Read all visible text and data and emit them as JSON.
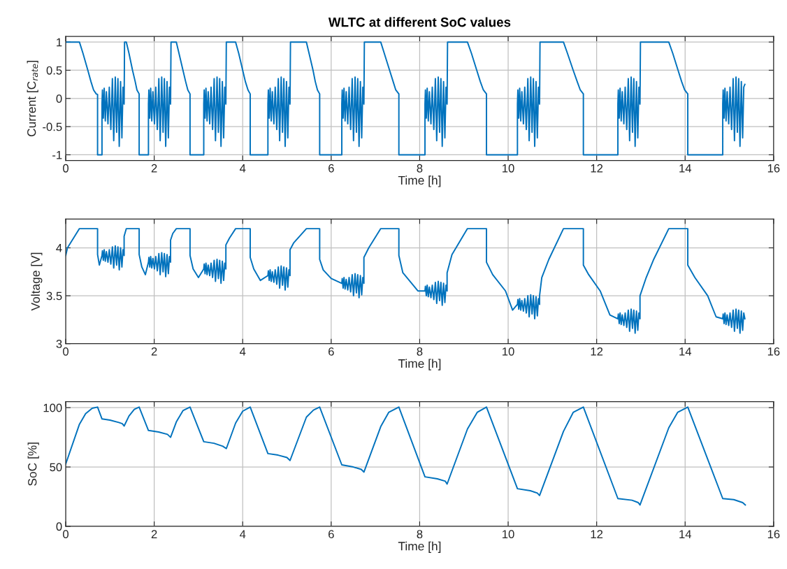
{
  "chart_data": [
    {
      "type": "line",
      "title": "WLTC at different SoC values",
      "xlabel": "Time [h]",
      "ylabel": "Current [C$_{rate}$]",
      "xlim": [
        0,
        16
      ],
      "xticks": [
        0,
        2,
        4,
        6,
        8,
        10,
        12,
        14,
        16
      ],
      "ylim": [
        -1.1,
        1.1
      ],
      "yticks": [
        -1,
        -0.5,
        0,
        0.5,
        1
      ],
      "grid": true,
      "series": [
        {
          "color": "#0072bd",
          "x": [
            0,
            0.31,
            0.39,
            0.5,
            0.57,
            0.63,
            0.69,
            0.72,
            0.72,
            0.82,
            0.82,
            0.83,
            0.85,
            0.87,
            0.895,
            0.92,
            0.955,
            0.985,
            1.02,
            1.055,
            1.085,
            1.12,
            1.15,
            1.18,
            1.21,
            1.24,
            1.27,
            1.295,
            1.32,
            1.33,
            1.37,
            1.43,
            1.51,
            1.57,
            1.61,
            1.66,
            1.66,
            1.87,
            1.87,
            1.88,
            1.9,
            1.92,
            1.945,
            1.97,
            2.005,
            2.035,
            2.07,
            2.105,
            2.135,
            2.17,
            2.2,
            2.23,
            2.26,
            2.29,
            2.32,
            2.345,
            2.37,
            2.38,
            2.5,
            2.56,
            2.65,
            2.71,
            2.76,
            2.81,
            2.81,
            3.12,
            3.12,
            3.13,
            3.15,
            3.17,
            3.195,
            3.22,
            3.255,
            3.285,
            3.32,
            3.355,
            3.385,
            3.42,
            3.45,
            3.48,
            3.51,
            3.54,
            3.57,
            3.595,
            3.62,
            3.63,
            3.84,
            3.91,
            4.0,
            4.06,
            4.12,
            4.17,
            4.17,
            4.57,
            4.57,
            4.58,
            4.6,
            4.62,
            4.645,
            4.67,
            4.705,
            4.735,
            4.77,
            4.805,
            4.835,
            4.87,
            4.9,
            4.93,
            4.96,
            4.99,
            5.02,
            5.045,
            5.07,
            5.08,
            5.44,
            5.5,
            5.59,
            5.64,
            5.69,
            5.74,
            5.74,
            6.24,
            6.24,
            6.25,
            6.27,
            6.29,
            6.315,
            6.34,
            6.375,
            6.405,
            6.44,
            6.475,
            6.505,
            6.54,
            6.57,
            6.6,
            6.63,
            6.66,
            6.69,
            6.715,
            6.74,
            6.75,
            7.12,
            7.2,
            7.32,
            7.4,
            7.46,
            7.53,
            7.53,
            8.12,
            8.12,
            8.13,
            8.15,
            8.17,
            8.195,
            8.22,
            8.255,
            8.285,
            8.32,
            8.355,
            8.385,
            8.42,
            8.45,
            8.48,
            8.51,
            8.54,
            8.57,
            8.595,
            8.62,
            8.63,
            9.08,
            9.17,
            9.29,
            9.37,
            9.44,
            9.51,
            9.51,
            10.21,
            10.21,
            10.22,
            10.24,
            10.26,
            10.285,
            10.31,
            10.345,
            10.375,
            10.41,
            10.445,
            10.475,
            10.51,
            10.54,
            10.57,
            10.6,
            10.63,
            10.66,
            10.685,
            10.71,
            10.72,
            11.25,
            11.34,
            11.47,
            11.56,
            11.63,
            11.7,
            11.7,
            12.48,
            12.48,
            12.49,
            12.51,
            12.53,
            12.555,
            12.58,
            12.615,
            12.645,
            12.68,
            12.715,
            12.745,
            12.78,
            12.81,
            12.84,
            12.87,
            12.9,
            12.93,
            12.955,
            12.98,
            12.99,
            13.63,
            13.72,
            13.84,
            13.92,
            13.99,
            14.06,
            14.06,
            14.85,
            14.85,
            14.86,
            14.88,
            14.9,
            14.925,
            14.95,
            14.985,
            15.015,
            15.05,
            15.085,
            15.115,
            15.15,
            15.18,
            15.21,
            15.24,
            15.27,
            15.3,
            15.325,
            15.35
          ],
          "values": [
            1,
            1,
            0.8,
            0.5,
            0.3,
            0.15,
            0.08,
            0.07,
            -1,
            -1,
            -0.1,
            0.15,
            -0.35,
            0.18,
            -0.4,
            0.12,
            -0.45,
            0.2,
            -0.55,
            0.35,
            -0.75,
            0.38,
            -0.6,
            0.35,
            -0.85,
            0.3,
            -0.7,
            0.2,
            -0.1,
            1,
            1,
            0.8,
            0.5,
            0.3,
            0.15,
            0.08,
            -1,
            -1,
            -0.1,
            0.15,
            -0.35,
            0.18,
            -0.4,
            0.12,
            -0.45,
            0.2,
            -0.55,
            0.35,
            -0.75,
            0.38,
            -0.6,
            0.35,
            -0.85,
            0.3,
            -0.7,
            0.2,
            -0.1,
            1,
            1,
            0.8,
            0.5,
            0.3,
            0.15,
            0.08,
            -1,
            -1,
            -0.1,
            0.15,
            -0.35,
            0.18,
            -0.4,
            0.12,
            -0.45,
            0.2,
            -0.55,
            0.35,
            -0.75,
            0.38,
            -0.6,
            0.35,
            -0.85,
            0.3,
            -0.7,
            0.2,
            -0.1,
            1,
            1,
            0.8,
            0.5,
            0.3,
            0.15,
            0.08,
            -1,
            -1,
            -0.1,
            0.15,
            -0.35,
            0.18,
            -0.4,
            0.12,
            -0.45,
            0.2,
            -0.55,
            0.35,
            -0.75,
            0.38,
            -0.6,
            0.35,
            -0.85,
            0.3,
            -0.7,
            0.2,
            -0.1,
            1,
            1,
            0.8,
            0.5,
            0.3,
            0.15,
            0.08,
            -1,
            -1,
            -0.1,
            0.15,
            -0.35,
            0.18,
            -0.4,
            0.12,
            -0.45,
            0.2,
            -0.55,
            0.35,
            -0.75,
            0.38,
            -0.6,
            0.35,
            -0.85,
            0.3,
            -0.7,
            0.2,
            -0.1,
            1,
            1,
            0.8,
            0.5,
            0.3,
            0.15,
            0.08,
            -1,
            -1,
            -0.1,
            0.15,
            -0.35,
            0.18,
            -0.4,
            0.12,
            -0.45,
            0.2,
            -0.55,
            0.35,
            -0.75,
            0.38,
            -0.6,
            0.35,
            -0.85,
            0.3,
            -0.7,
            0.2,
            -0.1,
            1,
            1,
            0.8,
            0.5,
            0.3,
            0.15,
            0.08,
            -1,
            -1,
            -0.1,
            0.15,
            -0.35,
            0.18,
            -0.4,
            0.12,
            -0.45,
            0.2,
            -0.55,
            0.35,
            -0.75,
            0.38,
            -0.6,
            0.35,
            -0.85,
            0.3,
            -0.7,
            0.2,
            -0.1,
            1,
            1,
            0.8,
            0.5,
            0.3,
            0.15,
            0.08,
            -1,
            -1,
            -0.1,
            0.15,
            -0.35,
            0.18,
            -0.4,
            0.12,
            -0.45,
            0.2,
            -0.55,
            0.35,
            -0.75,
            0.38,
            -0.6,
            0.35,
            -0.85,
            0.3,
            -0.7,
            0.2,
            -0.1,
            1,
            1,
            0.8,
            0.5,
            0.3,
            0.15,
            0.08,
            -1,
            -1,
            -0.1,
            0.15,
            -0.35,
            0.18,
            -0.4,
            0.12,
            -0.45,
            0.2,
            -0.55,
            0.35,
            -0.75,
            0.38,
            -0.6,
            0.35,
            -0.85,
            0.3,
            -0.7,
            0.2,
            0.25
          ]
        }
      ]
    },
    {
      "type": "line",
      "xlabel": "Time [h]",
      "ylabel": "Voltage [V]",
      "xlim": [
        0,
        16
      ],
      "xticks": [
        0,
        2,
        4,
        6,
        8,
        10,
        12,
        14,
        16
      ],
      "ylim": [
        3,
        4.3
      ],
      "yticks": [
        3,
        3.5,
        4
      ],
      "grid": true,
      "series": [
        {
          "color": "#0072bd",
          "x": [
            0,
            0.04,
            0.31,
            0.72,
            0.72,
            0.76,
            0.82,
            0.83,
            0.85,
            0.87,
            0.895,
            0.92,
            0.955,
            0.985,
            1.02,
            1.055,
            1.085,
            1.12,
            1.15,
            1.18,
            1.21,
            1.24,
            1.27,
            1.295,
            1.32,
            1.32,
            1.37,
            1.66,
            1.66,
            1.72,
            1.8,
            1.87,
            1.88,
            1.9,
            1.92,
            1.945,
            1.97,
            2.005,
            2.035,
            2.07,
            2.105,
            2.135,
            2.17,
            2.2,
            2.23,
            2.26,
            2.29,
            2.32,
            2.345,
            2.37,
            2.37,
            2.42,
            2.5,
            2.81,
            2.81,
            2.88,
            3.0,
            3.12,
            3.13,
            3.15,
            3.17,
            3.195,
            3.22,
            3.255,
            3.285,
            3.32,
            3.355,
            3.385,
            3.42,
            3.45,
            3.48,
            3.51,
            3.54,
            3.57,
            3.595,
            3.62,
            3.62,
            3.7,
            3.84,
            4.17,
            4.17,
            4.25,
            4.4,
            4.57,
            4.58,
            4.6,
            4.62,
            4.645,
            4.67,
            4.705,
            4.735,
            4.77,
            4.805,
            4.835,
            4.87,
            4.9,
            4.93,
            4.96,
            4.99,
            5.02,
            5.045,
            5.07,
            5.07,
            5.15,
            5.44,
            5.74,
            5.74,
            5.82,
            6.0,
            6.24,
            6.25,
            6.27,
            6.29,
            6.315,
            6.34,
            6.375,
            6.405,
            6.44,
            6.475,
            6.505,
            6.54,
            6.57,
            6.6,
            6.63,
            6.66,
            6.69,
            6.715,
            6.74,
            6.74,
            6.85,
            7.12,
            7.53,
            7.53,
            7.62,
            7.8,
            7.96,
            8.12,
            8.13,
            8.15,
            8.17,
            8.195,
            8.22,
            8.255,
            8.285,
            8.32,
            8.355,
            8.385,
            8.42,
            8.45,
            8.48,
            8.51,
            8.54,
            8.57,
            8.595,
            8.62,
            8.62,
            8.73,
            9.08,
            9.51,
            9.51,
            9.65,
            9.94,
            10.1,
            10.21,
            10.22,
            10.24,
            10.26,
            10.285,
            10.31,
            10.345,
            10.375,
            10.41,
            10.445,
            10.475,
            10.51,
            10.54,
            10.57,
            10.6,
            10.63,
            10.66,
            10.685,
            10.71,
            10.71,
            10.76,
            10.92,
            11.25,
            11.7,
            11.7,
            11.82,
            12.08,
            12.3,
            12.48,
            12.49,
            12.51,
            12.53,
            12.555,
            12.58,
            12.615,
            12.645,
            12.68,
            12.715,
            12.745,
            12.78,
            12.81,
            12.84,
            12.87,
            12.9,
            12.93,
            12.955,
            12.98,
            12.98,
            13.12,
            13.29,
            13.63,
            14.06,
            14.06,
            14.22,
            14.51,
            14.7,
            14.85,
            14.86,
            14.88,
            14.9,
            14.925,
            14.95,
            14.985,
            15.015,
            15.05,
            15.085,
            15.115,
            15.15,
            15.18,
            15.21,
            15.24,
            15.27,
            15.3,
            15.325,
            15.35
          ],
          "values": [
            3.92,
            4.0,
            4.2,
            4.2,
            3.93,
            3.82,
            3.92,
            3.97,
            3.87,
            3.98,
            3.86,
            3.96,
            3.85,
            3.98,
            3.83,
            4.01,
            3.79,
            4.02,
            3.82,
            4.01,
            3.77,
            4.0,
            3.8,
            3.98,
            3.92,
            4.12,
            4.2,
            4.2,
            3.93,
            3.8,
            3.72,
            3.85,
            3.9,
            3.8,
            3.91,
            3.79,
            3.89,
            3.78,
            3.91,
            3.76,
            3.94,
            3.72,
            3.95,
            3.75,
            3.94,
            3.7,
            3.93,
            3.73,
            3.91,
            3.85,
            4.08,
            4.15,
            4.2,
            4.2,
            3.92,
            3.78,
            3.69,
            3.78,
            3.83,
            3.73,
            3.84,
            3.72,
            3.82,
            3.71,
            3.84,
            3.69,
            3.87,
            3.65,
            3.88,
            3.68,
            3.87,
            3.63,
            3.86,
            3.66,
            3.84,
            3.78,
            4.03,
            4.1,
            4.2,
            4.2,
            3.9,
            3.78,
            3.66,
            3.71,
            3.76,
            3.66,
            3.77,
            3.65,
            3.75,
            3.64,
            3.77,
            3.62,
            3.8,
            3.58,
            3.81,
            3.61,
            3.8,
            3.56,
            3.79,
            3.59,
            3.77,
            3.71,
            3.98,
            4.05,
            4.2,
            4.2,
            3.88,
            3.77,
            3.68,
            3.63,
            3.68,
            3.58,
            3.69,
            3.57,
            3.67,
            3.56,
            3.69,
            3.54,
            3.72,
            3.5,
            3.73,
            3.53,
            3.72,
            3.48,
            3.71,
            3.51,
            3.69,
            3.63,
            3.9,
            4.0,
            4.2,
            4.2,
            3.92,
            3.74,
            3.64,
            3.55,
            3.55,
            3.6,
            3.5,
            3.61,
            3.49,
            3.59,
            3.48,
            3.61,
            3.46,
            3.64,
            3.42,
            3.65,
            3.45,
            3.64,
            3.4,
            3.63,
            3.43,
            3.61,
            3.55,
            3.74,
            3.93,
            4.2,
            4.2,
            3.85,
            3.72,
            3.55,
            3.35,
            3.41,
            3.46,
            3.36,
            3.47,
            3.35,
            3.45,
            3.34,
            3.47,
            3.32,
            3.5,
            3.28,
            3.51,
            3.31,
            3.5,
            3.26,
            3.49,
            3.29,
            3.47,
            3.41,
            3.5,
            3.69,
            3.88,
            4.2,
            4.2,
            3.82,
            3.72,
            3.55,
            3.3,
            3.26,
            3.31,
            3.21,
            3.32,
            3.2,
            3.3,
            3.19,
            3.32,
            3.17,
            3.35,
            3.13,
            3.36,
            3.16,
            3.35,
            3.11,
            3.34,
            3.14,
            3.32,
            3.26,
            3.5,
            3.69,
            3.88,
            4.2,
            4.2,
            3.82,
            3.69,
            3.5,
            3.28,
            3.26,
            3.31,
            3.21,
            3.32,
            3.2,
            3.3,
            3.19,
            3.32,
            3.17,
            3.35,
            3.13,
            3.36,
            3.16,
            3.35,
            3.11,
            3.34,
            3.14,
            3.32,
            3.26
          ]
        }
      ]
    },
    {
      "type": "line",
      "xlabel": "Time [h]",
      "ylabel": "SoC [%]",
      "xlim": [
        0,
        16
      ],
      "xticks": [
        0,
        2,
        4,
        6,
        8,
        10,
        12,
        14,
        16
      ],
      "ylim": [
        0,
        105
      ],
      "yticks": [
        0,
        50,
        100
      ],
      "grid": true,
      "series": [
        {
          "color": "#0072bd",
          "x": [
            0,
            0.31,
            0.45,
            0.6,
            0.72,
            0.82,
            1.0,
            1.2,
            1.28,
            1.32,
            1.43,
            1.55,
            1.66,
            1.87,
            2.1,
            2.3,
            2.37,
            2.5,
            2.65,
            2.81,
            3.12,
            3.35,
            3.55,
            3.63,
            3.84,
            4.0,
            4.17,
            4.57,
            4.8,
            5.0,
            5.07,
            5.44,
            5.6,
            5.74,
            6.24,
            6.5,
            6.68,
            6.74,
            7.12,
            7.3,
            7.53,
            8.12,
            8.4,
            8.58,
            8.62,
            9.08,
            9.3,
            9.51,
            10.21,
            10.5,
            10.66,
            10.71,
            11.25,
            11.47,
            11.7,
            12.48,
            12.8,
            12.94,
            12.98,
            13.63,
            13.83,
            14.06,
            14.85,
            15.1,
            15.3,
            15.36
          ],
          "values": [
            52.5,
            86,
            95,
            99.5,
            100.5,
            90.5,
            89.5,
            87.5,
            86.5,
            84.5,
            93,
            98.5,
            100.5,
            80.8,
            79.5,
            77.5,
            75,
            88,
            97.5,
            100.5,
            71.3,
            70,
            67.5,
            65.5,
            87,
            97,
            100.5,
            61.3,
            60,
            58,
            55.5,
            92,
            98,
            100.5,
            51.8,
            50,
            48,
            45.7,
            84,
            96,
            100.5,
            41.7,
            40,
            38,
            35.6,
            82,
            96,
            100.5,
            31.7,
            30,
            28,
            26,
            80,
            96,
            100.5,
            23.4,
            22,
            20,
            18,
            83,
            96,
            100.5,
            23.4,
            22.5,
            20,
            18
          ]
        }
      ]
    }
  ]
}
